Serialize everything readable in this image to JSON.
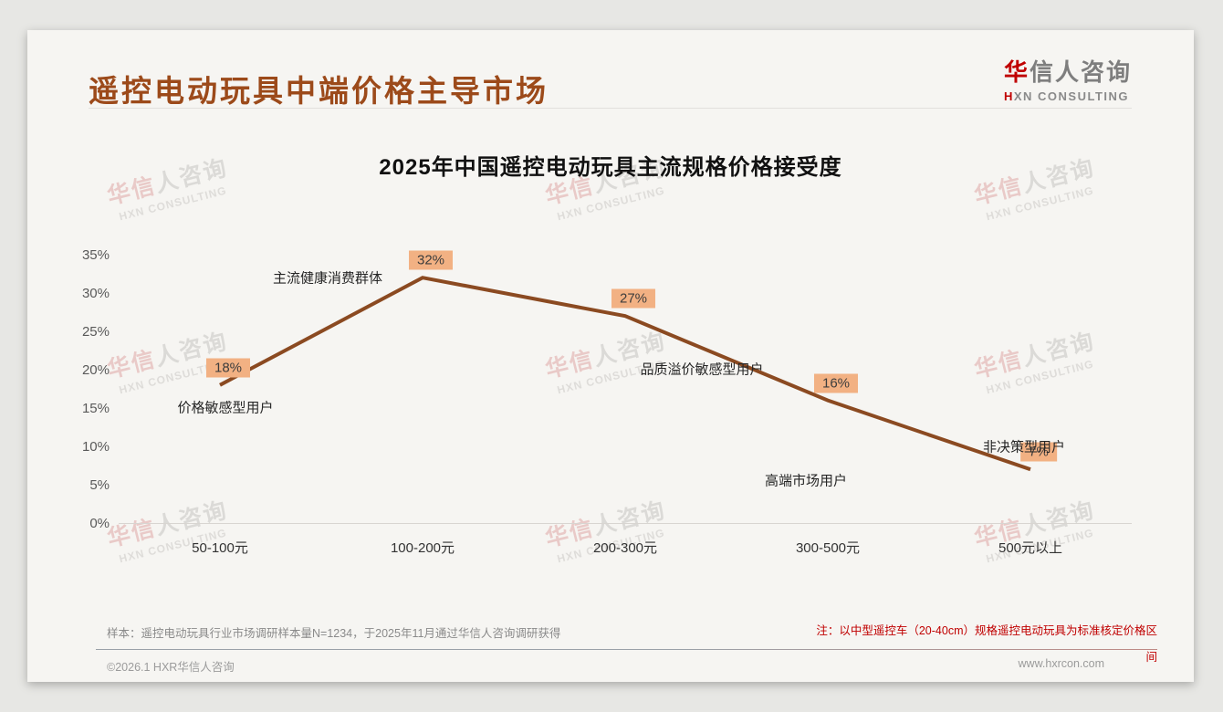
{
  "header": {
    "title": "遥控电动玩具中端价格主导市场",
    "logo": {
      "cn_accent": "华",
      "cn_rest": "信人咨询",
      "en_accent": "H",
      "en_rest": "XN CONSULTING"
    }
  },
  "watermark": {
    "cn_accent": "华信",
    "cn_rest": "人咨询",
    "en": "HXN CONSULTING"
  },
  "chart_data": {
    "type": "line",
    "title": "2025年中国遥控电动玩具主流规格价格接受度",
    "categories": [
      "50-100元",
      "100-200元",
      "200-300元",
      "300-500元",
      "500元以上"
    ],
    "values": [
      18,
      32,
      27,
      16,
      7
    ],
    "value_labels": [
      "18%",
      "32%",
      "27%",
      "16%",
      "7%"
    ],
    "annotations": [
      "价格敏感型用户",
      "主流健康消费群体",
      "品质溢价敏感型用户",
      "高端市场用户",
      "非决策型用户"
    ],
    "ytick_labels": [
      "35%",
      "30%",
      "25%",
      "20%",
      "15%",
      "10%",
      "5%",
      "0%"
    ],
    "ylim": [
      0,
      35
    ],
    "ytick_step": 5,
    "grid": false,
    "legend": false,
    "line_color": "#8b4a21",
    "value_label_bg": "#f2b183"
  },
  "footer": {
    "sample_note": "样本：遥控电动玩具行业市场调研样本量N=1234，于2025年11月通过华信人咨询调研获得",
    "method_note_line1": "注：以中型遥控车（20-40cm）规格遥控电动玩具为标准核定价格区",
    "method_note_line2": "间",
    "copyright": "©2026.1 HXR华信人咨询",
    "website": "www.hxrcon.com"
  }
}
